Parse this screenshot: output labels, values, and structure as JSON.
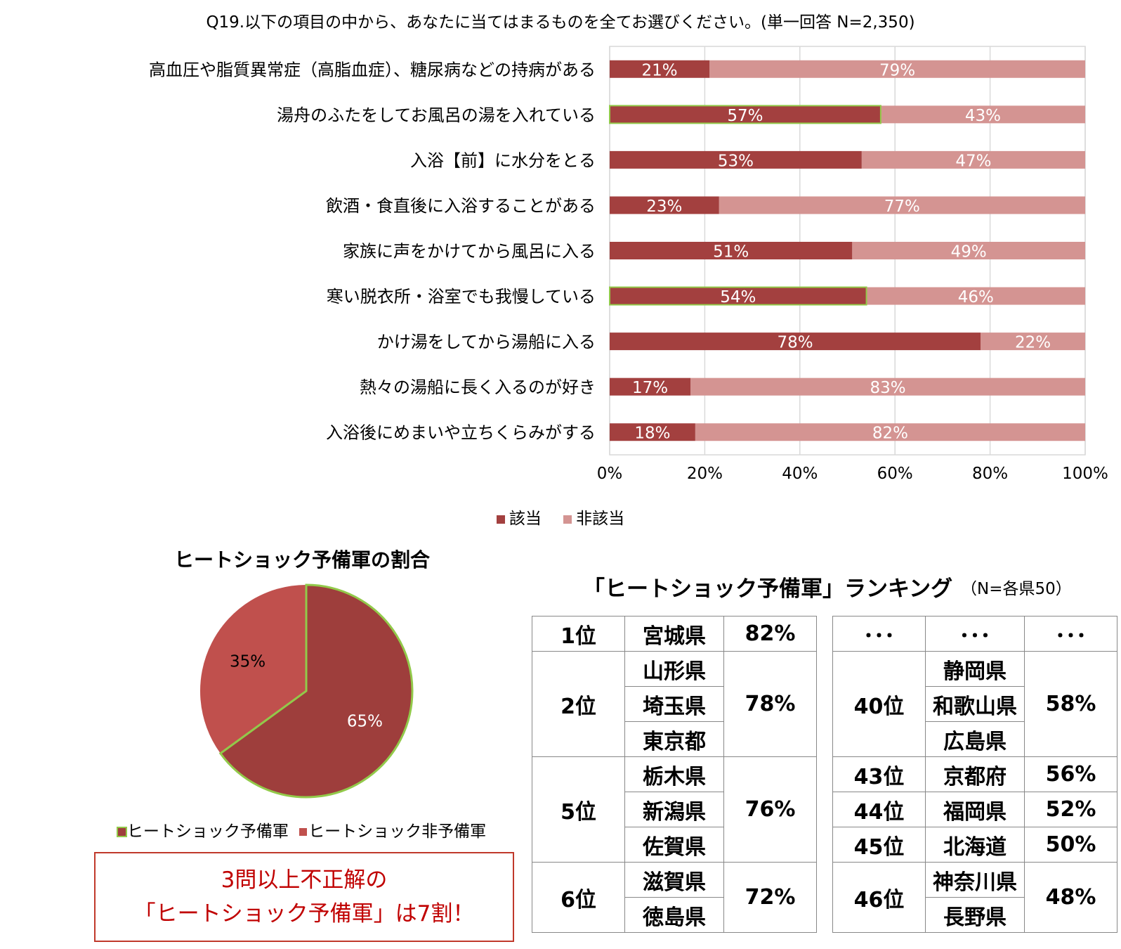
{
  "bar_chart": {
    "title": "Q19.以下の項目の中から、あなたに当てはまるものを全てお選びください。(単一回答 N=2,350)",
    "legend": [
      "該当",
      "非該当"
    ],
    "colors": {
      "applicable": "#a3403f",
      "not_applicable": "#d49492",
      "highlight_border": "#92c94a"
    }
  },
  "chart_data": [
    {
      "type": "bar",
      "orientation": "horizontal-stacked-100",
      "title": "Q19.以下の項目の中から、あなたに当てはまるものを全てお選びください。(単一回答 N=2,350)",
      "categories": [
        "高血圧や脂質異常症（高脂血症）、糖尿病などの持病がある",
        "湯舟のふたをしてお風呂の湯を入れている",
        "入浴【前】に水分をとる",
        "飲酒・食直後に入浴することがある",
        "家族に声をかけてから風呂に入る",
        "寒い脱衣所・浴室でも我慢している",
        "かけ湯をしてから湯船に入る",
        "熱々の湯船に長く入るのが好き",
        "入浴後にめまいや立ちくらみがする"
      ],
      "series": [
        {
          "name": "該当",
          "values": [
            21,
            57,
            53,
            23,
            51,
            54,
            78,
            17,
            18
          ]
        },
        {
          "name": "非該当",
          "values": [
            79,
            43,
            47,
            77,
            49,
            46,
            22,
            83,
            82
          ]
        }
      ],
      "value_labels_applicable": [
        "21%",
        "57%",
        "53%",
        "23%",
        "51%",
        "54%",
        "78%",
        "17%",
        "18%"
      ],
      "value_labels_not_applicable": [
        "79%",
        "43%",
        "47%",
        "77%",
        "49%",
        "46%",
        "22%",
        "83%",
        "82%"
      ],
      "highlighted_rows": [
        1,
        5
      ],
      "xlim": [
        0,
        100
      ],
      "xticks": [
        "0%",
        "20%",
        "40%",
        "60%",
        "80%",
        "100%"
      ],
      "grid": true,
      "legend_position": "bottom"
    },
    {
      "type": "pie",
      "title": "ヒートショック予備軍の割合",
      "labels": [
        "ヒートショック予備軍",
        "ヒートショック非予備軍"
      ],
      "values": [
        65,
        35
      ],
      "value_labels": [
        "65%",
        "35%"
      ],
      "colors": [
        "#9e3e3c",
        "#c0504d"
      ],
      "highlight_border": "#92c94a",
      "legend_position": "bottom"
    }
  ],
  "callout": {
    "line1": "3問以上不正解の",
    "line2": "「ヒートショック予備軍」は7割！"
  },
  "ranking": {
    "title": "「ヒートショック予備軍」ランキング",
    "note": "（N=各県50）",
    "left": [
      {
        "rank": "1位",
        "prefs": [
          "宮城県"
        ],
        "pct": "82%"
      },
      {
        "rank": "2位",
        "prefs": [
          "山形県",
          "埼玉県",
          "東京都"
        ],
        "pct": "78%"
      },
      {
        "rank": "5位",
        "prefs": [
          "栃木県",
          "新潟県",
          "佐賀県"
        ],
        "pct": "76%"
      },
      {
        "rank": "6位",
        "prefs": [
          "滋賀県",
          "徳島県"
        ],
        "pct": "72%"
      }
    ],
    "right_header": [
      "･･･",
      "･･･",
      "･･･"
    ],
    "right": [
      {
        "rank": "40位",
        "prefs": [
          "静岡県",
          "和歌山県",
          "広島県"
        ],
        "pct": "58%"
      },
      {
        "rank": "43位",
        "prefs": [
          "京都府"
        ],
        "pct": "56%"
      },
      {
        "rank": "44位",
        "prefs": [
          "福岡県"
        ],
        "pct": "52%"
      },
      {
        "rank": "45位",
        "prefs": [
          "北海道"
        ],
        "pct": "50%"
      },
      {
        "rank": "46位",
        "prefs": [
          "神奈川県",
          "長野県"
        ],
        "pct": "48%"
      }
    ]
  }
}
